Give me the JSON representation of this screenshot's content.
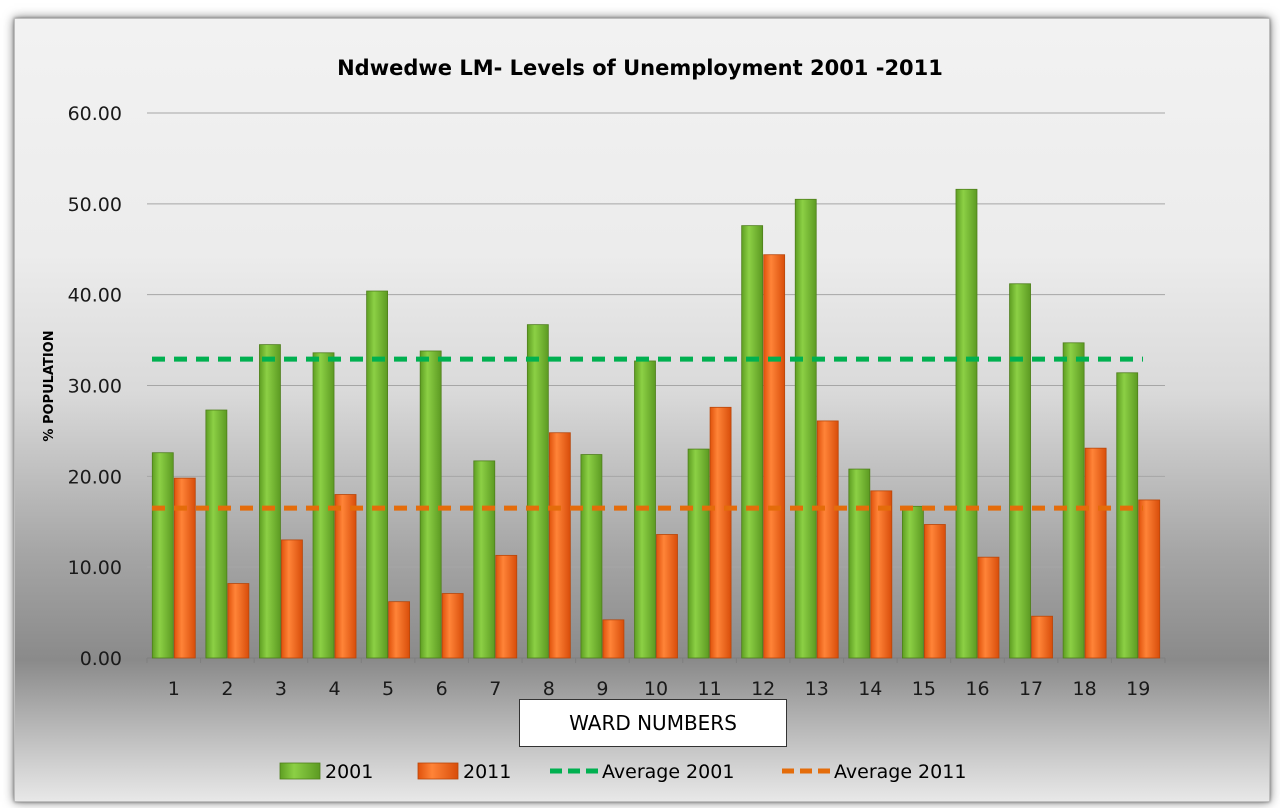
{
  "chart_data": {
    "type": "bar",
    "title": "Ndwedwe LM- Levels of Unemployment 2001 -2011",
    "xlabel": "WARD NUMBERS",
    "ylabel": "% POPULATION",
    "ylim": [
      0,
      60
    ],
    "yticks": [
      "0.00",
      "10.00",
      "20.00",
      "30.00",
      "40.00",
      "50.00",
      "60.00"
    ],
    "categories": [
      "1",
      "2",
      "3",
      "4",
      "5",
      "6",
      "7",
      "8",
      "9",
      "10",
      "11",
      "12",
      "13",
      "14",
      "15",
      "16",
      "17",
      "18",
      "19"
    ],
    "series": [
      {
        "name": "2001",
        "color": "#7cc13a",
        "values": [
          22.6,
          27.3,
          34.5,
          33.6,
          40.4,
          33.8,
          21.7,
          36.7,
          22.4,
          32.7,
          23.0,
          47.6,
          50.5,
          20.8,
          16.7,
          51.6,
          41.2,
          34.7,
          31.4
        ]
      },
      {
        "name": "2011",
        "color": "#f26b1d",
        "values": [
          19.8,
          8.2,
          13.0,
          18.0,
          6.2,
          7.1,
          11.3,
          24.8,
          4.2,
          13.6,
          27.6,
          44.4,
          26.1,
          18.4,
          14.7,
          11.1,
          4.6,
          23.1,
          17.4
        ]
      }
    ],
    "reference_lines": [
      {
        "name": "Average 2001",
        "value": 32.9,
        "color": "#00b050",
        "style": "dashed"
      },
      {
        "name": "Average 2011",
        "value": 16.5,
        "color": "#e46c0a",
        "style": "dashed"
      }
    ],
    "grid": true,
    "legend_position": "bottom"
  }
}
